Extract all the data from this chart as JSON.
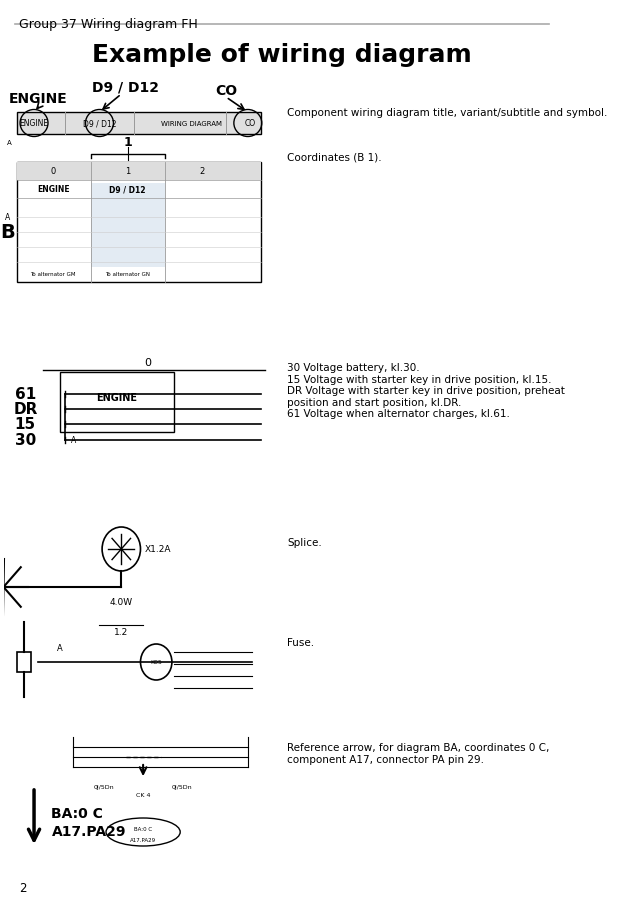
{
  "title": "Example of wiring diagram",
  "header_text": "Group 37 Wiring diagram FH",
  "page_number": "2",
  "bg_color": "#ffffff",
  "title_fontsize": 18,
  "header_fontsize": 9,
  "sections": [
    {
      "desc": "Component wiring diagram title, variant/subtitle and symbol."
    },
    {
      "desc": "Coordinates (B 1)."
    },
    {
      "desc": "30 Voltage battery, kl.30.\n15 Voltage with starter key in drive position, kl.15.\nDR Voltage with starter key in drive position, preheat\nposition and start position, kl.DR.\n61 Voltage when alternator charges, kl.61."
    },
    {
      "desc": "Splice."
    },
    {
      "desc": "Fuse."
    },
    {
      "desc": "Reference arrow, for diagram BA, coordinates 0 C,\ncomponent A17, connector PA pin 29."
    }
  ]
}
